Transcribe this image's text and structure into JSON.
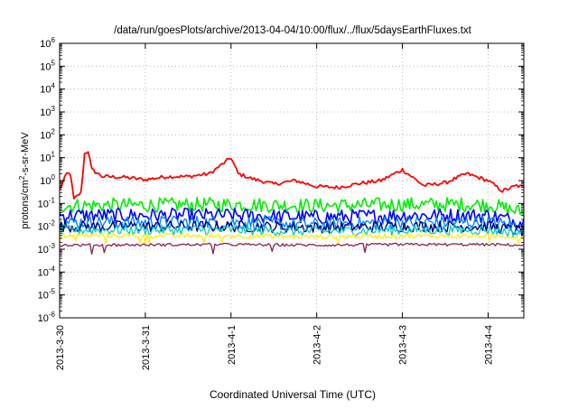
{
  "chart_data": {
    "type": "line",
    "title": "/data/run/goesPlots/archive/2013-04-04/10:00/flux/../flux/5daysEarthFluxes.txt",
    "xlabel": "Coordinated Universal Time (UTC)",
    "ylabel": {
      "prefix": "protons/cm",
      "superscript": "2",
      "suffix": "-s-sr-MeV"
    },
    "y_scale": "log",
    "ylim": [
      1e-06,
      1000000.0
    ],
    "y_ticks": [
      {
        "exp": -6
      },
      {
        "exp": -5
      },
      {
        "exp": -4
      },
      {
        "exp": -3
      },
      {
        "exp": -2
      },
      {
        "exp": -1
      },
      {
        "exp": 0
      },
      {
        "exp": 1
      },
      {
        "exp": 2
      },
      {
        "exp": 3
      },
      {
        "exp": 4
      },
      {
        "exp": 5
      },
      {
        "exp": 6
      }
    ],
    "y_tick_base": "10",
    "xlim": [
      "2013-03-30 00:00",
      "2013-04-04 10:00"
    ],
    "x_ticks": [
      "2013-3-30",
      "2013-3-31",
      "2013-4-1",
      "2013-4-2",
      "2013-4-3",
      "2013-4-4"
    ],
    "grid": true,
    "legend": "none",
    "series": [
      {
        "color": "#ff0000",
        "points": [
          [
            "2013-03-30 00:00",
            0.4
          ],
          [
            "2013-03-30 02:00",
            2.0
          ],
          [
            "2013-03-30 03:00",
            2.0
          ],
          [
            "2013-03-30 04:00",
            0.15
          ],
          [
            "2013-03-30 06:00",
            0.3
          ],
          [
            "2013-03-30 07:00",
            15
          ],
          [
            "2013-03-30 08:00",
            20
          ],
          [
            "2013-03-30 09:00",
            3.0
          ],
          [
            "2013-03-30 12:00",
            1.5
          ],
          [
            "2013-03-30 18:00",
            1.4
          ],
          [
            "2013-03-31 00:00",
            1.1
          ],
          [
            "2013-03-31 06:00",
            1.5
          ],
          [
            "2013-03-31 12:00",
            1.5
          ],
          [
            "2013-03-31 18:00",
            2.0
          ],
          [
            "2013-04-01 00:00",
            10
          ],
          [
            "2013-04-01 02:00",
            2.0
          ],
          [
            "2013-04-01 06:00",
            1.2
          ],
          [
            "2013-04-01 12:00",
            0.7
          ],
          [
            "2013-04-01 18:00",
            1.0
          ],
          [
            "2013-04-02 00:00",
            0.55
          ],
          [
            "2013-04-02 06:00",
            0.5
          ],
          [
            "2013-04-02 12:00",
            0.75
          ],
          [
            "2013-04-02 18:00",
            1.0
          ],
          [
            "2013-04-03 00:00",
            3.0
          ],
          [
            "2013-04-03 06:00",
            0.6
          ],
          [
            "2013-04-03 12:00",
            0.8
          ],
          [
            "2013-04-03 18:00",
            2.0
          ],
          [
            "2013-04-04 00:00",
            1.0
          ],
          [
            "2013-04-04 04:00",
            0.35
          ],
          [
            "2013-04-04 08:00",
            0.6
          ],
          [
            "2013-04-04 10:00",
            0.5
          ]
        ]
      },
      {
        "color": "#00ee00",
        "points": [
          [
            "2013-03-30 00:00",
            0.08
          ],
          [
            "2013-04-01 00:00",
            0.09
          ],
          [
            "2013-04-02 00:00",
            0.08
          ],
          [
            "2013-04-03 00:00",
            0.09
          ],
          [
            "2013-04-04 00:00",
            0.09
          ],
          [
            "2013-04-04 10:00",
            0.04
          ]
        ]
      },
      {
        "color": "#0000ff",
        "points": [
          [
            "2013-03-30 00:00",
            0.03
          ],
          [
            "2013-04-01 00:00",
            0.03
          ],
          [
            "2013-04-02 00:00",
            0.025
          ],
          [
            "2013-04-03 00:00",
            0.03
          ],
          [
            "2013-04-04 00:00",
            0.03
          ],
          [
            "2013-04-04 10:00",
            0.015
          ]
        ]
      },
      {
        "color": "#0088ff",
        "points": [
          [
            "2013-03-30 00:00",
            0.015
          ],
          [
            "2013-04-01 00:00",
            0.015
          ],
          [
            "2013-04-02 00:00",
            0.012
          ],
          [
            "2013-04-03 00:00",
            0.015
          ],
          [
            "2013-04-04 00:00",
            0.015
          ],
          [
            "2013-04-04 10:00",
            0.01
          ]
        ]
      },
      {
        "color": "#000080",
        "points": [
          [
            "2013-03-30 00:00",
            0.01
          ],
          [
            "2013-04-01 00:00",
            0.01
          ],
          [
            "2013-04-02 00:00",
            0.009
          ],
          [
            "2013-04-03 00:00",
            0.01
          ],
          [
            "2013-04-04 00:00",
            0.01
          ],
          [
            "2013-04-04 10:00",
            0.006
          ]
        ]
      },
      {
        "color": "#00cccc",
        "points": [
          [
            "2013-03-30 00:00",
            0.007
          ],
          [
            "2013-04-01 00:00",
            0.007
          ],
          [
            "2013-04-02 00:00",
            0.006
          ],
          [
            "2013-04-03 00:00",
            0.007
          ],
          [
            "2013-04-04 00:00",
            0.007
          ],
          [
            "2013-04-04 10:00",
            0.005
          ]
        ]
      },
      {
        "color": "#ffee00",
        "points": [
          [
            "2013-03-30 00:00",
            0.004
          ],
          [
            "2013-04-01 00:00",
            0.0038
          ],
          [
            "2013-04-02 00:00",
            0.0035
          ],
          [
            "2013-04-03 00:00",
            0.0038
          ],
          [
            "2013-04-04 00:00",
            0.0038
          ],
          [
            "2013-04-04 10:00",
            0.0035
          ]
        ]
      },
      {
        "color": "#8b2050",
        "points": [
          [
            "2013-03-30 00:00",
            0.0015
          ],
          [
            "2013-04-01 00:00",
            0.0016
          ],
          [
            "2013-04-02 00:00",
            0.0015
          ],
          [
            "2013-04-03 00:00",
            0.0016
          ],
          [
            "2013-04-04 00:00",
            0.0016
          ],
          [
            "2013-04-04 10:00",
            0.0015
          ]
        ]
      }
    ]
  }
}
